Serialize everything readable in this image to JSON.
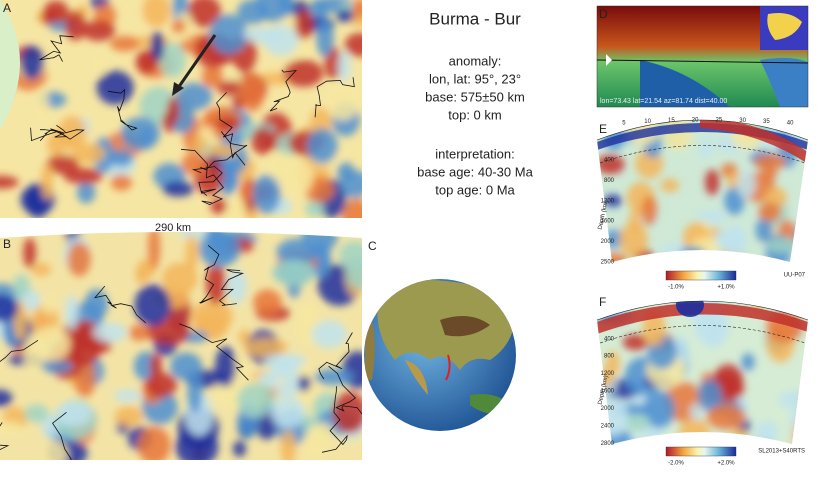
{
  "panels": {
    "A": {
      "label": "A",
      "scale": "290 km"
    },
    "B": {
      "label": "B"
    },
    "C": {
      "label": "C"
    },
    "D": {
      "label": "D",
      "caption": "lon=73.43 lat=21.54 az=81.74 dist=40.00"
    },
    "E": {
      "label": "E",
      "model": "UU-P07",
      "colorbar": [
        "-1.0%",
        "+1.0%"
      ],
      "depth_label": "Depth (km)",
      "depths": [
        "400",
        "800",
        "1200",
        "1600",
        "2000",
        "2500"
      ],
      "distances": [
        "5",
        "10",
        "15",
        "20",
        "25",
        "30",
        "35",
        "40"
      ]
    },
    "F": {
      "label": "F",
      "model": "SL2013+S40RTS",
      "colorbar": [
        "-2.0%",
        "+2.0%"
      ],
      "depth_label": "Depth (km)",
      "depths": [
        "400",
        "800",
        "1200",
        "1600",
        "2000",
        "2400",
        "2800"
      ]
    }
  },
  "info": {
    "title": "Burma - Bur",
    "anomaly_heading": "anomaly:",
    "anomaly_lines": [
      "lon, lat: 95°, 23°",
      "base: 575±50 km",
      "top: 0 km"
    ],
    "interpretation_heading": "interpretation:",
    "interpretation_lines": [
      "base age: 40-30 Ma",
      "top age: 0 Ma"
    ]
  }
}
